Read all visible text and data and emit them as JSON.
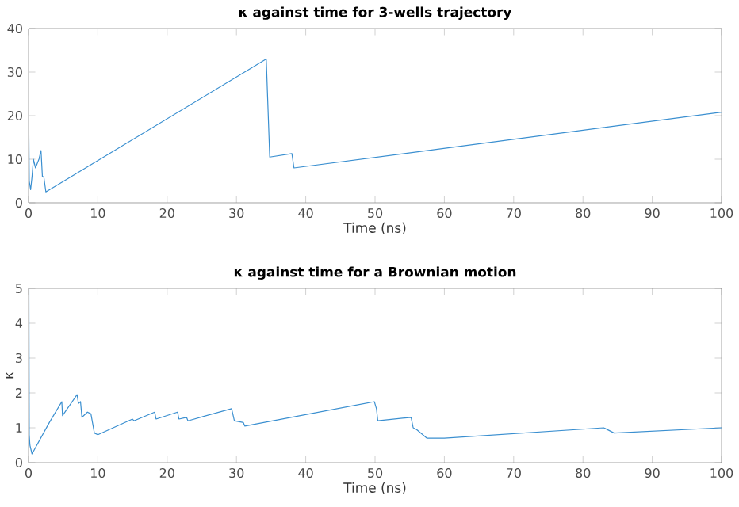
{
  "chart_data": [
    {
      "type": "line",
      "title": "κ against time for 3-wells trajectory",
      "xlabel": "Time (ns)",
      "xlim": [
        0,
        100
      ],
      "ylim": [
        0,
        40
      ],
      "xticks": [
        0,
        10,
        20,
        30,
        40,
        50,
        60,
        70,
        80,
        90,
        100
      ],
      "yticks": [
        0,
        10,
        20,
        30,
        40
      ],
      "series": [
        {
          "color": "#3a8fd0",
          "x": [
            0,
            0,
            0.1,
            0.3,
            0.5,
            0.7,
            1,
            1.5,
            1.8,
            2,
            2.2,
            2.5,
            34.3,
            34.5,
            34.8,
            38,
            38.3,
            100
          ],
          "values": [
            0,
            25,
            5,
            3,
            6,
            10,
            8,
            10,
            12,
            6,
            6,
            2.5,
            33,
            24,
            10.5,
            11.3,
            8,
            20.8
          ]
        }
      ]
    },
    {
      "type": "line",
      "title": "κ against time for a Brownian motion",
      "xlabel": "Time (ns)",
      "ylabel": "κ",
      "xlim": [
        0,
        100
      ],
      "ylim": [
        0,
        5
      ],
      "xticks": [
        0,
        10,
        20,
        30,
        40,
        50,
        60,
        70,
        80,
        90,
        100
      ],
      "yticks": [
        0,
        1,
        2,
        3,
        4,
        5
      ],
      "series": [
        {
          "color": "#3a8fd0",
          "x": [
            0,
            0.05,
            0.1,
            0.2,
            0.5,
            3,
            4.8,
            4.9,
            7,
            7.2,
            7.5,
            7.7,
            8.5,
            9,
            9.5,
            10,
            15,
            15.2,
            18.2,
            18.4,
            21.5,
            21.7,
            22.8,
            23,
            29.3,
            29.7,
            31,
            31.2,
            49.9,
            50.2,
            50.4,
            55.2,
            55.5,
            56,
            57.5,
            60,
            83,
            84.5,
            100
          ],
          "values": [
            0.5,
            5,
            0.8,
            0.5,
            0.25,
            1.15,
            1.75,
            1.35,
            1.95,
            1.7,
            1.75,
            1.3,
            1.45,
            1.4,
            0.85,
            0.8,
            1.25,
            1.2,
            1.45,
            1.25,
            1.45,
            1.25,
            1.3,
            1.2,
            1.55,
            1.2,
            1.15,
            1.05,
            1.75,
            1.55,
            1.2,
            1.3,
            1.0,
            0.95,
            0.7,
            0.7,
            1.0,
            0.85,
            1.0
          ]
        }
      ]
    }
  ]
}
